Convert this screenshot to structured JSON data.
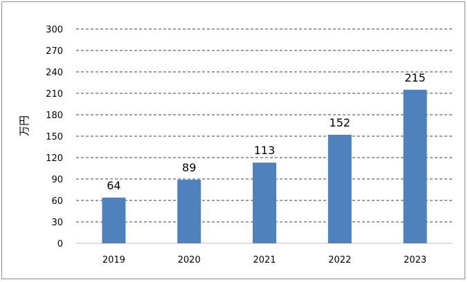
{
  "chart_data": {
    "type": "bar",
    "title": "",
    "xlabel": "",
    "ylabel": "万円",
    "categories": [
      "2019",
      "2020",
      "2021",
      "2022",
      "2023"
    ],
    "values": [
      64,
      89,
      113,
      152,
      215
    ],
    "data_labels": [
      "64",
      "89",
      "113",
      "152",
      "215"
    ],
    "y_ticks": [
      "0",
      "30",
      "60",
      "90",
      "120",
      "150",
      "180",
      "210",
      "240",
      "270",
      "300"
    ],
    "ylim": [
      0,
      300
    ],
    "grid": true,
    "grid_style": "dashed",
    "legend": "none",
    "bar_color": "#4f81bd"
  }
}
